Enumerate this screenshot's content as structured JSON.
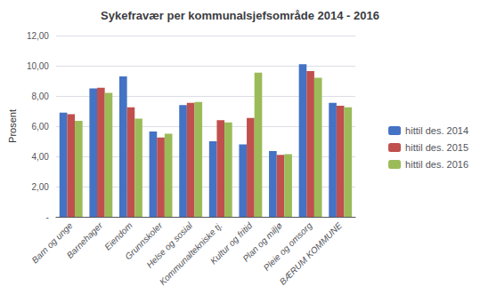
{
  "chart_data": {
    "type": "bar",
    "title": "Sykefravær per kommunalsjefsområde 2014 - 2016",
    "ylabel": "Prosent",
    "categories": [
      "Barn og unge",
      "Barnehager",
      "Eiendom",
      "Grunnskoler",
      "Helse og sosial",
      "Kommunaltekniske tj.",
      "Kultur og fritid",
      "Plan og miljø",
      "Pleie og omsorg",
      "BÆRUM KOMMUNE"
    ],
    "series": [
      {
        "name": "hittil des. 2014",
        "color": "#4472C4",
        "values": [
          6.9,
          8.5,
          9.3,
          5.65,
          7.4,
          5.0,
          4.8,
          4.35,
          10.1,
          7.55
        ]
      },
      {
        "name": "hittil des. 2015",
        "color": "#C0504D",
        "values": [
          6.8,
          8.55,
          7.25,
          5.25,
          7.55,
          6.4,
          6.55,
          4.1,
          9.65,
          7.35
        ]
      },
      {
        "name": "hittil des. 2016",
        "color": "#9BBB59",
        "values": [
          6.35,
          8.2,
          6.5,
          5.5,
          7.6,
          6.25,
          9.55,
          4.15,
          9.2,
          7.25
        ]
      }
    ],
    "ylim": [
      0,
      12
    ],
    "yticks": [
      {
        "value": 0,
        "label": "-"
      },
      {
        "value": 2.0,
        "label": "2,00"
      },
      {
        "value": 4.0,
        "label": "4,00"
      },
      {
        "value": 6.0,
        "label": "6,00"
      },
      {
        "value": 8.0,
        "label": "8,00"
      },
      {
        "value": 10.0,
        "label": "10,00"
      },
      {
        "value": 12.0,
        "label": "12,00"
      }
    ],
    "grid": true,
    "legend": "right"
  }
}
